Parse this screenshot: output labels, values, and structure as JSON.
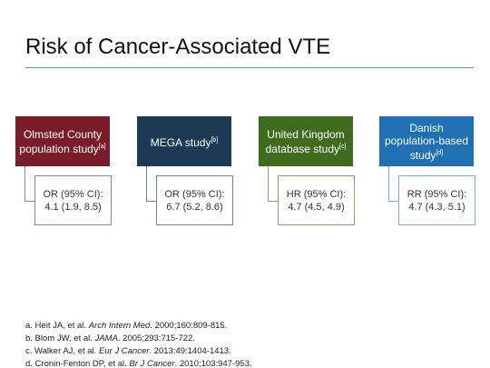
{
  "title": "Risk of Cancer-Associated VTE",
  "studies": [
    {
      "name": "Olmsted County population study",
      "ref": "[a]",
      "measure": "OR (95% CI):",
      "result": "4.1 (1.9, 8.5)"
    },
    {
      "name": "MEGA study",
      "ref": "[b]",
      "measure": "OR (95% CI):",
      "result": "6.7 (5.2, 8.6)"
    },
    {
      "name": "United Kingdom database study",
      "ref": "[c]",
      "measure": "HR (95% CI):",
      "result": "4.7 (4.5, 4.9)"
    },
    {
      "name": "Danish population-based study",
      "ref": "[d]",
      "measure": "RR (95% CI):",
      "result": "4.7 (4.3, 5.1)"
    }
  ],
  "footnotes": [
    {
      "prefix": "a. Heit JA, et al. ",
      "journal": "Arch Intern Med",
      "suffix": ". 2000;160:809-815."
    },
    {
      "prefix": "b. Blom JW, et al. ",
      "journal": "JAMA",
      "suffix": ". 2005;293:715-722."
    },
    {
      "prefix": "c. Walker AJ, et al. ",
      "journal": "Eur J Cancer",
      "suffix": ". 2013;49:1404-1413."
    },
    {
      "prefix": "d. Cronin-Fenton DP, et al. ",
      "journal": "Br J Cancer",
      "suffix": ". 2010;103:947-953."
    }
  ]
}
